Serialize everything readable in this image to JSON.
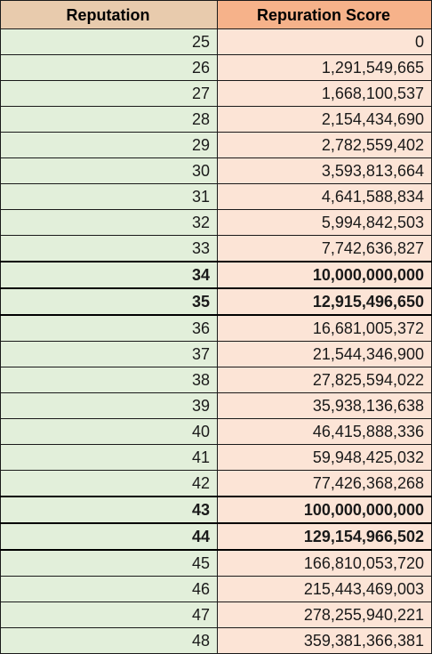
{
  "headers": {
    "reputation": "Reputation",
    "score": "Repuration Score"
  },
  "rows": [
    {
      "reputation": "25",
      "score": "0",
      "bold": false
    },
    {
      "reputation": "26",
      "score": "1,291,549,665",
      "bold": false
    },
    {
      "reputation": "27",
      "score": "1,668,100,537",
      "bold": false
    },
    {
      "reputation": "28",
      "score": "2,154,434,690",
      "bold": false
    },
    {
      "reputation": "29",
      "score": "2,782,559,402",
      "bold": false
    },
    {
      "reputation": "30",
      "score": "3,593,813,664",
      "bold": false
    },
    {
      "reputation": "31",
      "score": "4,641,588,834",
      "bold": false
    },
    {
      "reputation": "32",
      "score": "5,994,842,503",
      "bold": false
    },
    {
      "reputation": "33",
      "score": "7,742,636,827",
      "bold": false
    },
    {
      "reputation": "34",
      "score": "10,000,000,000",
      "bold": true
    },
    {
      "reputation": "35",
      "score": "12,915,496,650",
      "bold": true
    },
    {
      "reputation": "36",
      "score": "16,681,005,372",
      "bold": false
    },
    {
      "reputation": "37",
      "score": "21,544,346,900",
      "bold": false
    },
    {
      "reputation": "38",
      "score": "27,825,594,022",
      "bold": false
    },
    {
      "reputation": "39",
      "score": "35,938,136,638",
      "bold": false
    },
    {
      "reputation": "40",
      "score": "46,415,888,336",
      "bold": false
    },
    {
      "reputation": "41",
      "score": "59,948,425,032",
      "bold": false
    },
    {
      "reputation": "42",
      "score": "77,426,368,268",
      "bold": false
    },
    {
      "reputation": "43",
      "score": "100,000,000,000",
      "bold": true
    },
    {
      "reputation": "44",
      "score": "129,154,966,502",
      "bold": true
    },
    {
      "reputation": "45",
      "score": "166,810,053,720",
      "bold": false
    },
    {
      "reputation": "46",
      "score": "215,443,469,003",
      "bold": false
    },
    {
      "reputation": "47",
      "score": "278,255,940,221",
      "bold": false
    },
    {
      "reputation": "48",
      "score": "359,381,366,381",
      "bold": false
    }
  ],
  "colors": {
    "header_reputation_bg": "#e8cbad",
    "header_score_bg": "#f6b28a",
    "reputation_cell_bg": "#e2efda",
    "score_cell_bg": "#fce4d6",
    "grid_line": "#1a1a1a"
  }
}
